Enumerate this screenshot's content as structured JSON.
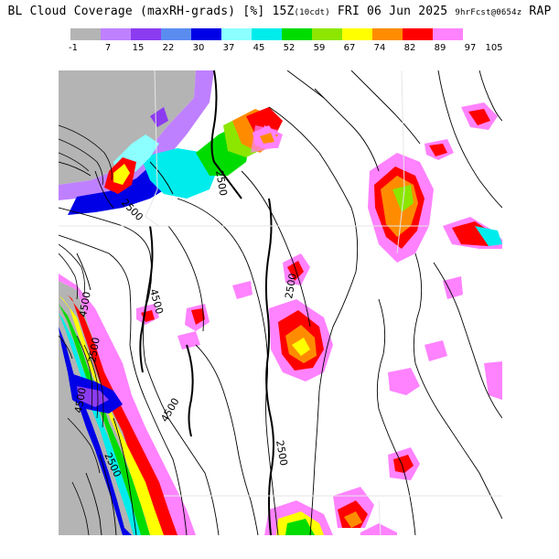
{
  "header": {
    "title": "BL Cloud Coverage (maxRH-grads) [%] 15Z",
    "title_local": "(10cdt)",
    "title_date": "FRI 06 Jun 2025",
    "title_fcst": "9hrFcst@0654z",
    "title_model": "RAP"
  },
  "colorbar": {
    "colors": [
      "#b4b4b4",
      "#bf80ff",
      "#8c3cf0",
      "#5a8cf0",
      "#0000e6",
      "#8cffff",
      "#00ecec",
      "#00dc00",
      "#8ce600",
      "#ffff00",
      "#ff8c00",
      "#ff0000",
      "#ff82ff"
    ],
    "ticks": [
      "-1",
      "7",
      "15",
      "22",
      "30",
      "37",
      "45",
      "52",
      "59",
      "67",
      "74",
      "82",
      "89",
      "97",
      "105"
    ]
  },
  "map": {
    "contour_labels": [
      "2500",
      "2500",
      "4500",
      "4500",
      "2500",
      "2500",
      "4500",
      "2500",
      "4500",
      "2500"
    ]
  }
}
